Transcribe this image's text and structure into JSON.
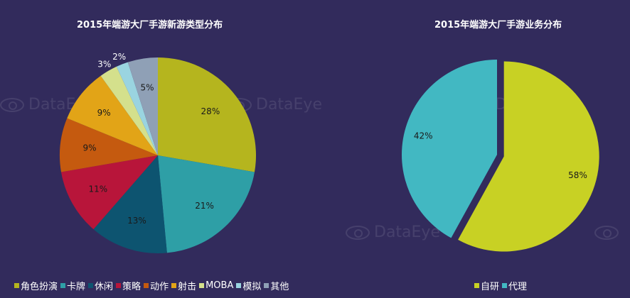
{
  "chart_data": [
    {
      "type": "pie",
      "title": "2015年端游大厂手游新游类型分布",
      "legend_position": "bottom",
      "slices": [
        {
          "label": "角色扮演",
          "value": 28,
          "display": "28%",
          "color": "#b5b51e"
        },
        {
          "label": "卡牌",
          "value": 21,
          "display": "21%",
          "color": "#2e9fa6"
        },
        {
          "label": "休闲",
          "value": 13,
          "display": "13%",
          "color": "#0d5470"
        },
        {
          "label": "策略",
          "value": 11,
          "display": "11%",
          "color": "#b8153a"
        },
        {
          "label": "动作",
          "value": 9,
          "display": "9%",
          "color": "#c55a0f"
        },
        {
          "label": "射击",
          "value": 9,
          "display": "9%",
          "color": "#e2a417"
        },
        {
          "label": "MOBA",
          "value": 3,
          "display": "3%",
          "color": "#d4e08c"
        },
        {
          "label": "模拟",
          "value": 2,
          "display": "2%",
          "color": "#9ad4e0"
        },
        {
          "label": "其他",
          "value": 5,
          "display": "5%",
          "color": "#8fa0b6"
        }
      ]
    },
    {
      "type": "pie",
      "title": "2015年端游大厂手游业务分布",
      "legend_position": "bottom",
      "slices": [
        {
          "label": "自研",
          "value": 58,
          "display": "58%",
          "color": "#c8d124"
        },
        {
          "label": "代理",
          "value": 42,
          "display": "42%",
          "color": "#42b8c2"
        }
      ]
    }
  ],
  "watermark": "DataEye"
}
